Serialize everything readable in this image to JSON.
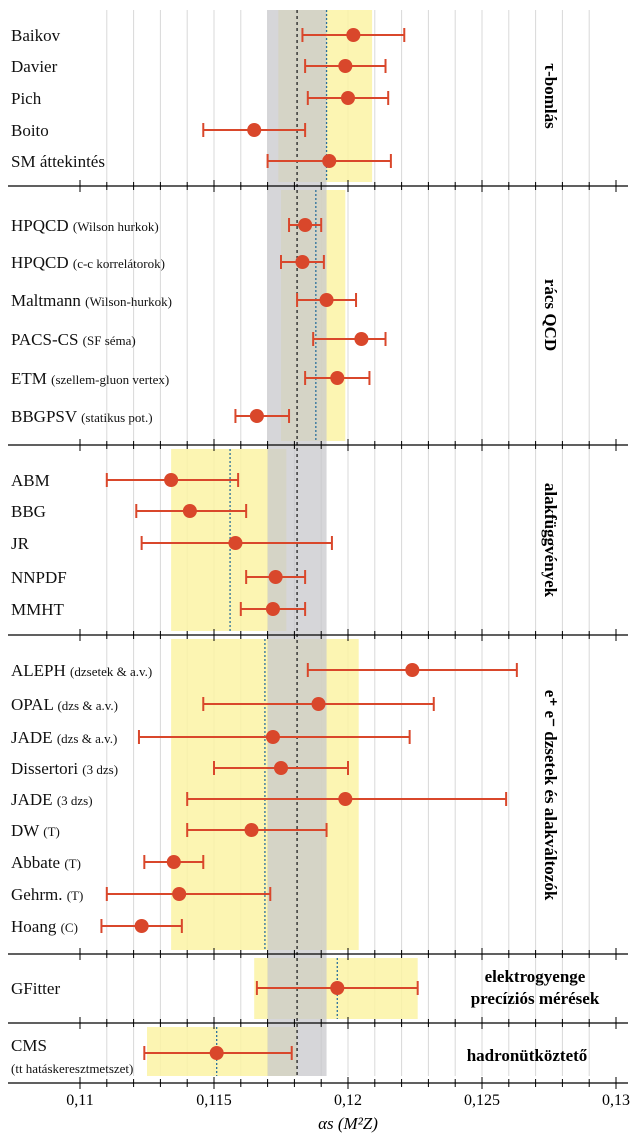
{
  "chart_data": {
    "type": "scatter",
    "xlabel": "αs (M²Z)",
    "xlim": [
      0.11,
      0.13
    ],
    "x_ticks": [
      "0,11",
      "0,115",
      "0,12",
      "0,125",
      "0,13"
    ],
    "world_average": {
      "value": 0.1181,
      "band": [
        0.117,
        0.1192
      ]
    },
    "grid": true,
    "groups": [
      {
        "title": "τ-bomlás",
        "average": 0.1192,
        "band": [
          0.1174,
          0.1209
        ],
        "points": [
          {
            "name": "Baikov",
            "note": "",
            "x": 0.1202,
            "lo": 0.1183,
            "hi": 0.1221
          },
          {
            "name": "Davier",
            "note": "",
            "x": 0.1199,
            "lo": 0.1184,
            "hi": 0.1214
          },
          {
            "name": "Pich",
            "note": "",
            "x": 0.12,
            "lo": 0.1185,
            "hi": 0.1215
          },
          {
            "name": "Boito",
            "note": "",
            "x": 0.1165,
            "lo": 0.1146,
            "hi": 0.1184
          },
          {
            "name": "SM áttekintés",
            "note": "",
            "x": 0.1193,
            "lo": 0.117,
            "hi": 0.1216
          }
        ]
      },
      {
        "title": "rács QCD",
        "average": 0.1188,
        "band": [
          0.1175,
          0.1199
        ],
        "points": [
          {
            "name": "HPQCD",
            "note": "(Wilson hurkok)",
            "x": 0.1184,
            "lo": 0.1178,
            "hi": 0.119
          },
          {
            "name": "HPQCD",
            "note": "(c-c korrelátorok)",
            "x": 0.1183,
            "lo": 0.1175,
            "hi": 0.1191
          },
          {
            "name": "Maltmann",
            "note": "(Wilson-hurkok)",
            "x": 0.1192,
            "lo": 0.1181,
            "hi": 0.1203
          },
          {
            "name": "PACS-CS",
            "note": "(SF séma)",
            "x": 0.1205,
            "lo": 0.1187,
            "hi": 0.1214
          },
          {
            "name": "ETM",
            "note": "(szellem-gluon vertex)",
            "x": 0.1196,
            "lo": 0.1184,
            "hi": 0.1208
          },
          {
            "name": "BBGPSV",
            "note": "(statikus pot.)",
            "x": 0.1166,
            "lo": 0.1158,
            "hi": 0.1178
          }
        ]
      },
      {
        "title": "alakfüggvények",
        "average": 0.1156,
        "band": [
          0.1134,
          0.1177
        ],
        "points": [
          {
            "name": "ABM",
            "note": "",
            "x": 0.1134,
            "lo": 0.111,
            "hi": 0.1159
          },
          {
            "name": "BBG",
            "note": "",
            "x": 0.1141,
            "lo": 0.1121,
            "hi": 0.1162
          },
          {
            "name": "JR",
            "note": "",
            "x": 0.1158,
            "lo": 0.1123,
            "hi": 0.1194
          },
          {
            "name": "NNPDF",
            "note": "",
            "x": 0.1173,
            "lo": 0.1162,
            "hi": 0.1184
          },
          {
            "name": "MMHT",
            "note": "",
            "x": 0.1172,
            "lo": 0.116,
            "hi": 0.1184
          }
        ]
      },
      {
        "title": "e⁺ e⁻ dzsetek és alakváltozók",
        "average": 0.1169,
        "band": [
          0.1134,
          0.1204
        ],
        "points": [
          {
            "name": "ALEPH",
            "note": "(dzsetek & a.v.)",
            "x": 0.1224,
            "lo": 0.1185,
            "hi": 0.1263
          },
          {
            "name": "OPAL",
            "note": "(dzs & a.v.)",
            "x": 0.1189,
            "lo": 0.1146,
            "hi": 0.1232
          },
          {
            "name": "JADE",
            "note": "(dzs & a.v.)",
            "x": 0.1172,
            "lo": 0.1122,
            "hi": 0.1223
          },
          {
            "name": "Dissertori",
            "note": "(3 dzs)",
            "x": 0.1175,
            "lo": 0.115,
            "hi": 0.12
          },
          {
            "name": "JADE",
            "note": "(3 dzs)",
            "x": 0.1199,
            "lo": 0.114,
            "hi": 0.1259
          },
          {
            "name": "DW",
            "note": "(T)",
            "x": 0.1164,
            "lo": 0.114,
            "hi": 0.1192
          },
          {
            "name": "Abbate",
            "note": "(T)",
            "x": 0.1135,
            "lo": 0.1124,
            "hi": 0.1146
          },
          {
            "name": "Gehrm.",
            "note": "(T)",
            "x": 0.1137,
            "lo": 0.111,
            "hi": 0.1171
          },
          {
            "name": "Hoang",
            "note": "(C)",
            "x": 0.1123,
            "lo": 0.1108,
            "hi": 0.1138
          }
        ]
      },
      {
        "title": "elektrogyenge precíziós mérések",
        "title_lines": [
          "elektrogyenge",
          "precíziós mérések"
        ],
        "average": 0.1196,
        "band": [
          0.1165,
          0.1226
        ],
        "points": [
          {
            "name": "GFitter",
            "note": "",
            "x": 0.1196,
            "lo": 0.1166,
            "hi": 0.1226
          }
        ]
      },
      {
        "title": "hadronütköztető",
        "average": 0.1151,
        "band": [
          0.1125,
          0.1181
        ],
        "points": [
          {
            "name": "CMS",
            "note": "(tt hatáskeresztmetszet)",
            "note_below": true,
            "x": 0.1151,
            "lo": 0.1124,
            "hi": 0.1179
          }
        ]
      }
    ]
  },
  "colors": {
    "point": "#d9472b",
    "world_band": "#c8c8cc",
    "group_band": "#fbf3a5",
    "group_average_line": "#2a6f9b",
    "world_average_line": "#222222",
    "grid": "#d8d8d8"
  }
}
